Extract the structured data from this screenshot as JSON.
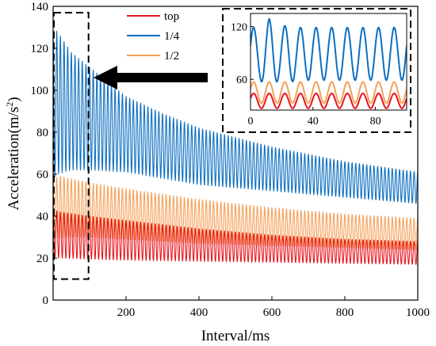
{
  "chart_data": [
    {
      "name": "main",
      "type": "line",
      "title": "",
      "xlabel": "Interval/ms",
      "ylabel": "Acceleration(m/s",
      "ylabel_sup": "2",
      "ylabel_close": ")",
      "xlim": [
        0,
        1000
      ],
      "ylim": [
        0,
        140
      ],
      "xticks": [
        200,
        400,
        600,
        800,
        1000
      ],
      "yticks": [
        0,
        20,
        40,
        60,
        80,
        100,
        120,
        140
      ],
      "grid": false,
      "legend": "top-center",
      "period_ms": 10,
      "series": [
        {
          "name": "top",
          "color": "#e8141c",
          "envelope_x": [
            0,
            20,
            100,
            200,
            400,
            600,
            800,
            1000
          ],
          "upper": [
            43,
            42,
            40,
            38,
            34,
            31,
            29,
            28
          ],
          "lower": [
            20,
            20,
            19.5,
            19,
            18.5,
            18,
            17.5,
            17
          ]
        },
        {
          "name": "1/4",
          "color": "#0e6fbf",
          "envelope_x": [
            0,
            12,
            50,
            100,
            200,
            300,
            400,
            600,
            800,
            1000
          ],
          "upper": [
            125,
            128,
            118,
            111,
            97,
            89,
            82,
            73,
            66,
            61
          ],
          "lower": [
            58,
            60,
            62,
            62,
            61,
            58,
            55,
            52,
            49,
            46
          ],
          "spike_x": [
            12,
            25
          ],
          "spike_y": [
            129,
            123
          ]
        },
        {
          "name": "1/2",
          "color": "#f5a05a",
          "envelope_x": [
            0,
            20,
            100,
            200,
            400,
            600,
            800,
            1000
          ],
          "upper": [
            58,
            59,
            56,
            53,
            48,
            44,
            41,
            39
          ],
          "lower": [
            29,
            30,
            30,
            29,
            27,
            26,
            25,
            24
          ]
        }
      ],
      "highlight_box": {
        "x": [
          0,
          95
        ],
        "y": [
          10,
          137
        ]
      }
    },
    {
      "name": "inset",
      "type": "line",
      "xlim": [
        0,
        100
      ],
      "ylim": [
        25,
        135
      ],
      "xticks": [
        0,
        40,
        80
      ],
      "yticks": [
        60,
        120
      ],
      "period_ms": 10,
      "series": [
        {
          "name": "top",
          "color": "#e8141c",
          "mean": 35.5,
          "amp": 8.5
        },
        {
          "name": "1/4",
          "color": "#0e6fbf",
          "mean": 89,
          "amp": 30,
          "peak_x": [
            12,
            24
          ],
          "peak_y": [
            129,
            122
          ]
        },
        {
          "name": "1/2",
          "color": "#f5a05a",
          "mean": 45,
          "amp": 12
        }
      ]
    }
  ]
}
